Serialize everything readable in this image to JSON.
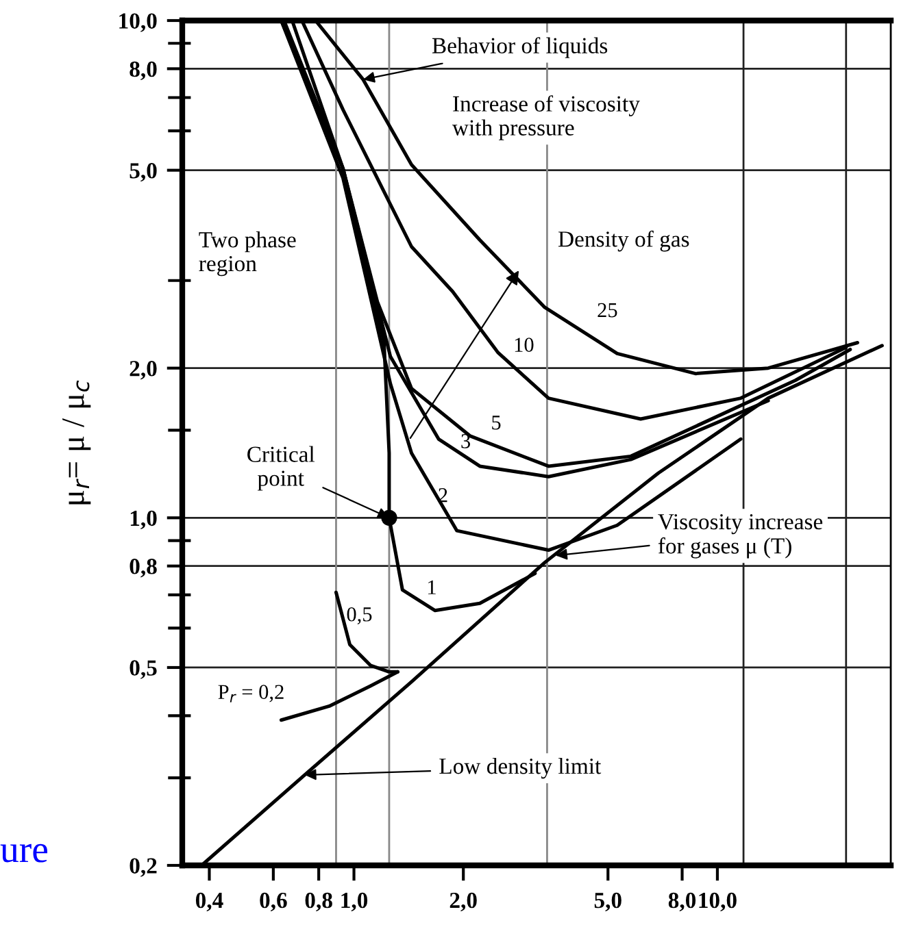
{
  "chart_data": {
    "type": "line",
    "ylabel": "μ$_{r}$= μ / μ$_{c}$",
    "log": "xy",
    "xlim": [
      0.337,
      30
    ],
    "ylim": [
      0.2,
      10
    ],
    "xticks": [
      {
        "value": 0.4,
        "label": "0,4"
      },
      {
        "value": 0.6,
        "label": "0,6"
      },
      {
        "value": 0.8,
        "label": "0,8"
      },
      {
        "value": 1.0,
        "label": "1,0"
      },
      {
        "value": 2.0,
        "label": "2,0"
      },
      {
        "value": 5.0,
        "label": "5,0"
      },
      {
        "value": 8.0,
        "label": "8,0"
      },
      {
        "value": 10.0,
        "label": "10,0"
      }
    ],
    "yticks": [
      {
        "value": 0.2,
        "label": "0,2"
      },
      {
        "value": 0.3,
        "label": null
      },
      {
        "value": 0.4,
        "label": null
      },
      {
        "value": 0.5,
        "label": "0,5"
      },
      {
        "value": 0.6,
        "label": null
      },
      {
        "value": 0.7,
        "label": null
      },
      {
        "value": 0.8,
        "label": "0,8"
      },
      {
        "value": 0.9,
        "label": null
      },
      {
        "value": 1.0,
        "label": "1,0"
      },
      {
        "value": 1.5,
        "label": null
      },
      {
        "value": 2.0,
        "label": "2,0"
      },
      {
        "value": 3.0,
        "label": null
      },
      {
        "value": 5.0,
        "label": "5,0"
      },
      {
        "value": 6.0,
        "label": null
      },
      {
        "value": 7.0,
        "label": null
      },
      {
        "value": 8.0,
        "label": "8,0"
      },
      {
        "value": 9.0,
        "label": null
      },
      {
        "value": 10.0,
        "label": "10,0"
      }
    ],
    "ref_lines": [
      {
        "axis": "y",
        "value": 0.5,
        "color": "#222222"
      },
      {
        "axis": "y",
        "value": 0.8,
        "color": "#222222"
      },
      {
        "axis": "y",
        "value": 1.0,
        "color": "#222222"
      },
      {
        "axis": "y",
        "value": 2.0,
        "color": "#222222"
      },
      {
        "axis": "y",
        "value": 5.0,
        "color": "#222222"
      },
      {
        "axis": "y",
        "value": 8.0,
        "color": "#222222"
      },
      {
        "axis": "x",
        "value": 0.893,
        "color": "#888888"
      },
      {
        "axis": "x",
        "value": 1.25,
        "color": "#888888"
      },
      {
        "axis": "x",
        "value": 3.4,
        "color": "#888888"
      },
      {
        "axis": "x",
        "value": 11.8,
        "color": "#222222"
      },
      {
        "axis": "x",
        "value": 22.6,
        "color": "#222222"
      }
    ],
    "series": [
      {
        "name": "25",
        "color": "#000000",
        "x": [
          0.784,
          1.06,
          1.44,
          2.22,
          3.35,
          5.3,
          8.7,
          13.8,
          24.3
        ],
        "values": [
          10,
          7.61,
          5.13,
          3.62,
          2.65,
          2.14,
          1.95,
          2.0,
          2.25
        ]
      },
      {
        "name": "10",
        "color": "#000000",
        "x": [
          0.719,
          0.933,
          1.44,
          1.87,
          2.49,
          3.43,
          6.15,
          11.6,
          22.6
        ],
        "values": [
          10,
          6.62,
          3.51,
          2.85,
          2.15,
          1.74,
          1.58,
          1.74,
          2.2
        ]
      },
      {
        "name": "5",
        "color": "#000000",
        "x": [
          0.676,
          0.933,
          1.16,
          1.44,
          2.09,
          3.43,
          5.78,
          16.4,
          23.2
        ],
        "values": [
          10,
          5.04,
          2.72,
          1.82,
          1.46,
          1.27,
          1.33,
          1.89,
          2.18
        ]
      },
      {
        "name": "3",
        "color": "#000000",
        "x": [
          0.642,
          0.933,
          1.26,
          1.71,
          2.22,
          3.43,
          5.78,
          13.8
        ],
        "values": [
          10,
          5.04,
          2.11,
          1.44,
          1.27,
          1.21,
          1.31,
          1.72
        ]
      },
      {
        "name": "2",
        "color": "#000000",
        "x": [
          0.631,
          0.933,
          1.26,
          1.44,
          1.92,
          3.43,
          5.3,
          11.6
        ],
        "values": [
          10,
          4.82,
          1.86,
          1.35,
          0.942,
          0.861,
          0.966,
          1.44
        ]
      },
      {
        "name": "1",
        "color": "#000000",
        "x": [
          0.631,
          0.933,
          1.21,
          1.25,
          1.25,
          1.36,
          1.67,
          2.22,
          3.15
        ],
        "values": [
          10,
          5.04,
          2.25,
          1.35,
          1.0,
          0.716,
          0.651,
          0.673,
          0.773
        ]
      },
      {
        "name": "0,5",
        "color": "#000000",
        "x": [
          0.893,
          0.974,
          1.11,
          1.25,
          1.32
        ],
        "values": [
          0.708,
          0.556,
          0.505,
          0.49,
          0.49
        ]
      },
      {
        "name": "P$_{r}$ = 0,2",
        "color": "#000000",
        "x": [
          0.631,
          0.855,
          1.11,
          1.32
        ],
        "values": [
          0.392,
          0.418,
          0.459,
          0.49
        ]
      },
      {
        "color": "#000000",
        "x": [
          0.381,
          0.732,
          1.44,
          3.35,
          6.88,
          13.8,
          28.4
        ],
        "values": [
          0.2,
          0.304,
          0.468,
          0.813,
          1.23,
          1.74,
          2.22
        ]
      },
      {
        "type": "scatter",
        "marker": "circle",
        "color": "#000000",
        "x": [
          1.25
        ],
        "values": [
          1.0
        ]
      }
    ],
    "annotations": [
      {
        "text": "Behavior of liquids",
        "x": 1.06,
        "y": 7.61
      },
      "Increase of viscosity\nwith pressure",
      "Two phase\nregion",
      "Density of gas",
      {
        "text": "Critical\npoint",
        "x": 1.25,
        "y": 1.0
      },
      {
        "text": "Viscosity increase\nfor gases μ (T)",
        "x": 3.59,
        "y": 0.84
      },
      {
        "text": "Low density limit",
        "x": 0.732,
        "y": 0.304
      },
      "ure"
    ],
    "legend": false,
    "grid": false
  }
}
